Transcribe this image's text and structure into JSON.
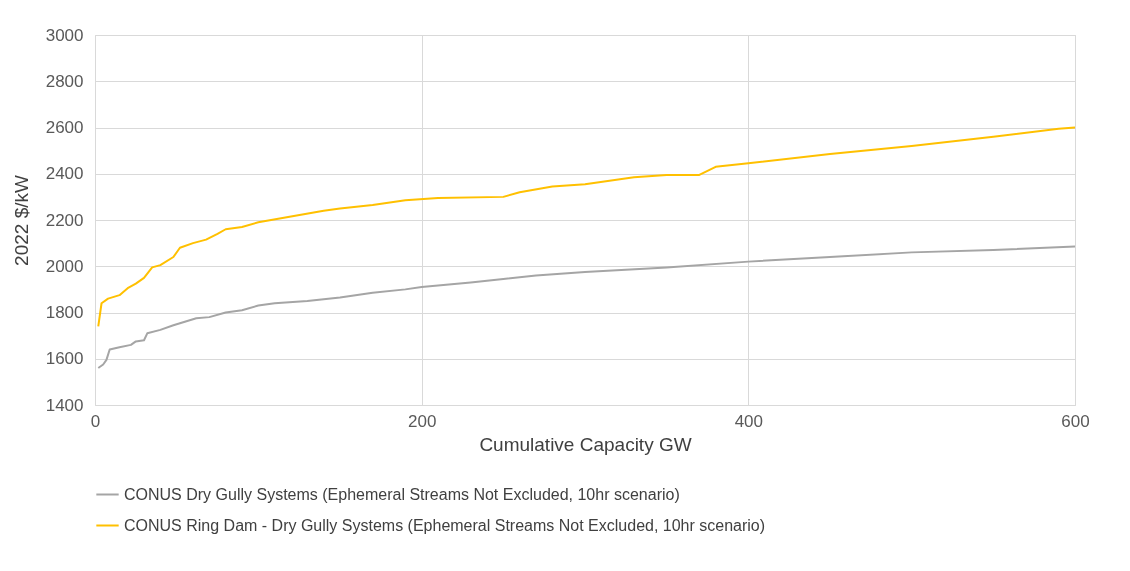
{
  "chart_data": {
    "type": "line",
    "xlabel": "Cumulative Capacity GW",
    "ylabel": "2022 $/kW",
    "xlim": [
      0,
      600
    ],
    "xticks": [
      0,
      200,
      400,
      600
    ],
    "ylim": [
      1400,
      3000
    ],
    "yticks": [
      1400,
      1600,
      1800,
      2000,
      2200,
      2400,
      2600,
      2800,
      3000
    ],
    "grid": true,
    "legend": "bottom",
    "marker": "none",
    "line_style": "solid",
    "series": [
      {
        "name": "CONUS Dry Gully Systems (Ephemeral Streams Not Excluded, 10hr scenario)",
        "color": "#a5a5a5",
        "x": [
          2,
          5,
          7,
          9,
          15,
          22,
          25,
          30,
          32,
          40,
          48,
          55,
          62,
          70,
          80,
          90,
          100,
          110,
          130,
          150,
          170,
          190,
          200,
          230,
          250,
          270,
          300,
          350,
          400,
          450,
          500,
          550,
          600
        ],
        "values": [
          1560,
          1575,
          1595,
          1640,
          1650,
          1660,
          1675,
          1680,
          1710,
          1725,
          1745,
          1760,
          1775,
          1780,
          1800,
          1810,
          1830,
          1840,
          1850,
          1865,
          1885,
          1900,
          1910,
          1930,
          1945,
          1960,
          1975,
          1995,
          2020,
          2040,
          2060,
          2070,
          2085
        ]
      },
      {
        "name": "CONUS Ring Dam - Dry Gully Systems (Ephemeral Streams Not Excluded, 10hr scenario)",
        "color": "#ffc000",
        "x": [
          2,
          4,
          8,
          15,
          20,
          25,
          30,
          35,
          40,
          48,
          52,
          60,
          68,
          75,
          80,
          90,
          100,
          120,
          140,
          150,
          170,
          190,
          210,
          250,
          260,
          280,
          300,
          330,
          350,
          370,
          380,
          400,
          450,
          500,
          550,
          590,
          600
        ],
        "values": [
          1740,
          1840,
          1860,
          1875,
          1905,
          1925,
          1950,
          1995,
          2005,
          2040,
          2080,
          2100,
          2115,
          2140,
          2160,
          2170,
          2190,
          2215,
          2240,
          2250,
          2265,
          2285,
          2295,
          2300,
          2320,
          2345,
          2355,
          2385,
          2395,
          2395,
          2430,
          2445,
          2485,
          2520,
          2560,
          2595,
          2600
        ]
      }
    ]
  }
}
